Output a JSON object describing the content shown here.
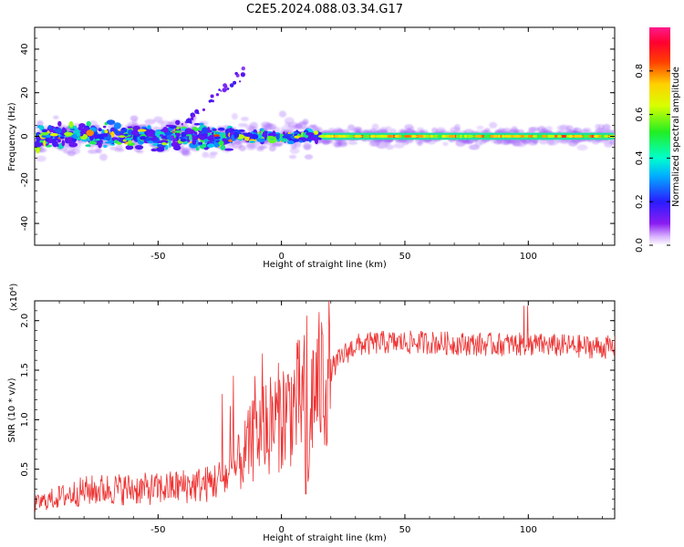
{
  "figure": {
    "title": "C2E5.2024.088.03.34.G17"
  },
  "chart_data": [
    {
      "type": "heatmap",
      "title": "C2E5.2024.088.03.34.G17",
      "xlabel": "Height of straight line (km)",
      "ylabel": "Frequency (Hz)",
      "xlim": [
        -100,
        135
      ],
      "ylim": [
        -50,
        50
      ],
      "xticks": [
        -50,
        0,
        50,
        100
      ],
      "yticks": [
        -40,
        -20,
        0,
        20,
        40
      ],
      "colorbar": {
        "label": "Normalized spectral amplitude",
        "range": [
          0,
          1
        ],
        "ticks": [
          "0.0",
          "0.2",
          "0.4",
          "0.6",
          "0.8"
        ],
        "colormap": "rainbow (violet-blue-cyan-green-yellow-red-magenta)"
      },
      "structures": [
        {
          "x_range": [
            -100,
            16
          ],
          "freq_center": 0,
          "freq_spread": 6,
          "description": "scattered blobs"
        },
        {
          "x_range": [
            16,
            135
          ],
          "freq_center": 0,
          "freq_spread": 1,
          "description": "narrow strong line"
        },
        {
          "x_range": [
            -45,
            -15
          ],
          "freq_center": "rising to ~30",
          "description": "drifting faint points"
        }
      ]
    },
    {
      "type": "line",
      "xlabel": "Height of straight line (km)",
      "ylabel": "SNR (10 * v/v)",
      "y_multiplier": "(x10⁴)",
      "xlim": [
        -100,
        135
      ],
      "ylim": [
        0,
        2.2
      ],
      "xticks": [
        -50,
        0,
        50,
        100
      ],
      "yticks": [
        0.5,
        1.0,
        1.5,
        2.0
      ],
      "series": [
        {
          "color": "#ee3333",
          "x": [
            -100,
            -90,
            -80,
            -70,
            -60,
            -50,
            -40,
            -30,
            -20,
            -15,
            -10,
            -5,
            0,
            5,
            8,
            10,
            11,
            12,
            15,
            20,
            25,
            30,
            40,
            50,
            60,
            70,
            80,
            90,
            100,
            110,
            120,
            135
          ],
          "y": [
            0.15,
            0.22,
            0.28,
            0.3,
            0.3,
            0.3,
            0.33,
            0.35,
            0.45,
            0.65,
            0.85,
            0.95,
            1.05,
            1.15,
            1.2,
            1.25,
            0.3,
            1.25,
            1.35,
            1.5,
            1.65,
            1.75,
            1.78,
            1.78,
            1.78,
            1.77,
            1.76,
            1.76,
            1.76,
            1.75,
            1.74,
            1.73
          ]
        }
      ]
    }
  ]
}
